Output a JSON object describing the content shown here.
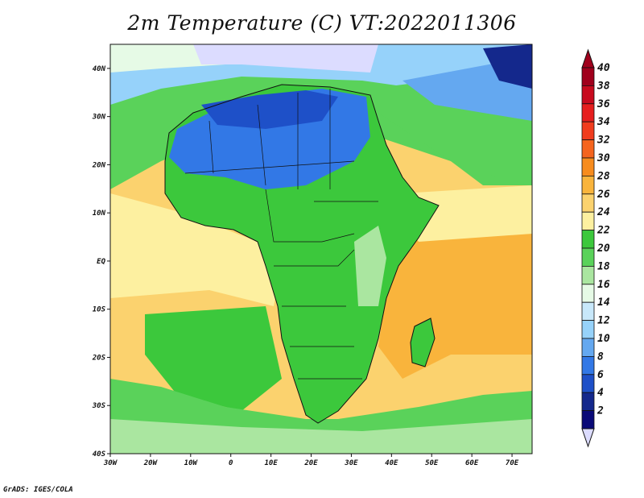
{
  "title": "2m Temperature (C) VT:2022011306",
  "credit": "GrADS: IGES/COLA",
  "colorbar": {
    "labels": [
      "40",
      "38",
      "36",
      "34",
      "32",
      "30",
      "28",
      "26",
      "24",
      "22",
      "20",
      "18",
      "16",
      "14",
      "12",
      "10",
      "8",
      "6",
      "4",
      "2"
    ],
    "colors": [
      "#a0001c",
      "#c80a1e",
      "#e61e1e",
      "#f03c1e",
      "#f5641e",
      "#f78c1e",
      "#f9b43c",
      "#fbd26e",
      "#fdf0a0",
      "#3cc83c",
      "#5ad25a",
      "#aae6a0",
      "#e6fae6",
      "#c8e8fa",
      "#96d2fa",
      "#64a8f0",
      "#3278e6",
      "#1e50c8",
      "#14288c",
      "#0a0a78"
    ],
    "below_color": "#dcdcff",
    "above_color": "#a0001c"
  },
  "axes": {
    "x_ticks": [
      "30W",
      "20W",
      "10W",
      "0",
      "10E",
      "20E",
      "30E",
      "40E",
      "50E",
      "60E",
      "70E"
    ],
    "y_ticks": [
      "40N",
      "30N",
      "20N",
      "10N",
      "EQ",
      "10S",
      "20S",
      "30S",
      "40S"
    ],
    "lon_range": [
      -30,
      75
    ],
    "lat_range": [
      -40,
      45
    ]
  },
  "chart_data": {
    "type": "heatmap",
    "title": "2m Temperature (C) VT:2022011306",
    "x": [
      "30W",
      "20W",
      "10W",
      "0",
      "10E",
      "20E",
      "30E",
      "40E",
      "50E",
      "60E",
      "70E"
    ],
    "y": [
      "40N",
      "30N",
      "20N",
      "10N",
      "EQ",
      "10S",
      "20S",
      "30S",
      "40S"
    ],
    "zlabel_levels": [
      2,
      4,
      6,
      8,
      10,
      12,
      14,
      16,
      18,
      20,
      22,
      24,
      26,
      28,
      30,
      32,
      34,
      36,
      38,
      40
    ]
  }
}
